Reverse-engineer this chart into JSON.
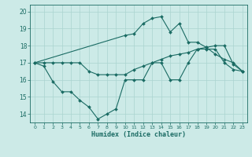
{
  "xlabel": "Humidex (Indice chaleur)",
  "ylabel": "",
  "xlim": [
    -0.5,
    23.5
  ],
  "ylim": [
    13.5,
    20.4
  ],
  "yticks": [
    14,
    15,
    16,
    17,
    18,
    19,
    20
  ],
  "xticks": [
    0,
    1,
    2,
    3,
    4,
    5,
    6,
    7,
    8,
    9,
    10,
    11,
    12,
    13,
    14,
    15,
    16,
    17,
    18,
    19,
    20,
    21,
    22,
    23
  ],
  "background_color": "#cceae7",
  "grid_color": "#aad4d0",
  "line_color": "#1a6b63",
  "lines": [
    {
      "x": [
        0,
        1,
        2,
        3,
        4,
        5,
        6,
        7,
        8,
        9,
        10,
        11,
        12,
        13,
        14,
        15,
        16,
        17,
        18,
        19,
        20,
        21,
        22,
        23
      ],
      "y": [
        17.0,
        16.8,
        15.9,
        15.3,
        15.3,
        14.8,
        14.4,
        13.7,
        14.0,
        14.3,
        16.0,
        16.0,
        16.0,
        17.0,
        17.0,
        16.0,
        16.0,
        17.0,
        17.8,
        17.8,
        17.8,
        17.0,
        16.6,
        16.5
      ]
    },
    {
      "x": [
        0,
        1,
        2,
        3,
        4,
        5,
        6,
        7,
        8,
        9,
        10,
        11,
        12,
        13,
        14,
        15,
        16,
        17,
        18,
        19,
        20,
        21,
        22,
        23
      ],
      "y": [
        17.0,
        17.0,
        17.0,
        17.0,
        17.0,
        17.0,
        16.5,
        16.3,
        16.3,
        16.3,
        16.3,
        16.6,
        16.8,
        17.0,
        17.2,
        17.4,
        17.5,
        17.6,
        17.8,
        17.9,
        18.0,
        18.0,
        16.9,
        16.5
      ]
    },
    {
      "x": [
        0,
        10,
        11,
        12,
        13,
        14,
        15,
        16,
        17,
        18,
        19,
        20,
        21,
        22,
        23
      ],
      "y": [
        17.0,
        18.6,
        18.7,
        19.3,
        19.6,
        19.7,
        18.8,
        19.3,
        18.2,
        18.2,
        17.9,
        17.5,
        17.2,
        17.0,
        16.5
      ]
    }
  ]
}
